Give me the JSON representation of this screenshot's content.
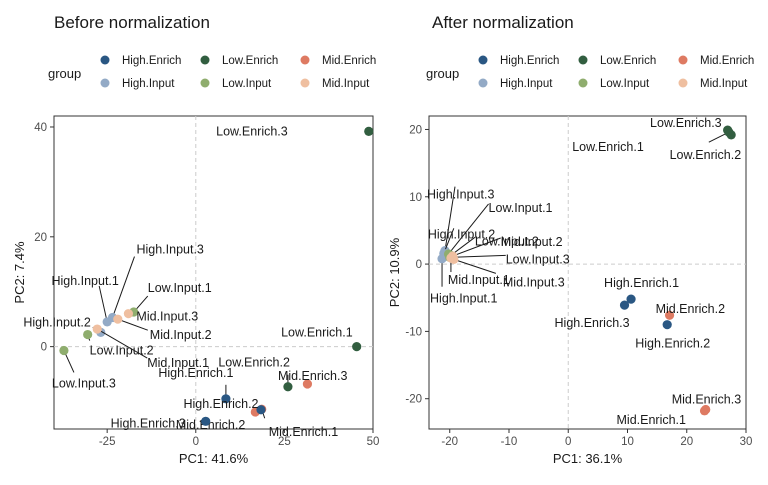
{
  "legend": {
    "title": "group",
    "entries": [
      {
        "name": "High.Enrich",
        "color": "#2a5783"
      },
      {
        "name": "Low.Enrich",
        "color": "#325e40"
      },
      {
        "name": "Mid.Enrich",
        "color": "#de7a62"
      },
      {
        "name": "High.Input",
        "color": "#93aac6"
      },
      {
        "name": "Low.Input",
        "color": "#8fad6e"
      },
      {
        "name": "Mid.Input",
        "color": "#efbfa0"
      }
    ]
  },
  "chart_data": [
    {
      "type": "scatter",
      "title": "Before normalization",
      "xlabel": "PC1: 41.6%",
      "ylabel": "PC2: 7.4%",
      "xlim": [
        -40,
        50
      ],
      "ylim": [
        -15,
        42
      ],
      "xticks": [
        -25,
        0,
        25,
        50
      ],
      "yticks": [
        0,
        20,
        40
      ],
      "reference_lines": {
        "x": 0,
        "y": 0
      },
      "legend_position": "top",
      "points": [
        {
          "label": "Low.Enrich.3",
          "group": "Low.Enrich",
          "x": 48.8,
          "y": 39.2
        },
        {
          "label": "Low.Enrich.1",
          "group": "Low.Enrich",
          "x": 45.4,
          "y": 0
        },
        {
          "label": "Low.Enrich.2",
          "group": "Low.Enrich",
          "x": 26.0,
          "y": -7.3
        },
        {
          "label": "Mid.Enrich.3",
          "group": "Mid.Enrich",
          "x": 31.5,
          "y": -6.8
        },
        {
          "label": "Mid.Enrich.1",
          "group": "Mid.Enrich",
          "x": 18.6,
          "y": -11.4
        },
        {
          "label": "Mid.Enrich.2",
          "group": "Mid.Enrich",
          "x": 16.8,
          "y": -11.9
        },
        {
          "label": "High.Enrich.1",
          "group": "High.Enrich",
          "x": 8.5,
          "y": -9.5
        },
        {
          "label": "High.Enrich.2",
          "group": "High.Enrich",
          "x": 18.4,
          "y": -11.5
        },
        {
          "label": "High.Enrich.3",
          "group": "High.Enrich",
          "x": 2.8,
          "y": -13.6
        },
        {
          "label": "High.Input.3",
          "group": "High.Input",
          "x": -23.5,
          "y": 5.3
        },
        {
          "label": "High.Input.1",
          "group": "High.Input",
          "x": -25.0,
          "y": 4.5
        },
        {
          "label": "High.Input.2",
          "group": "High.Input",
          "x": -26.8,
          "y": 2.6
        },
        {
          "label": "Low.Input.1",
          "group": "Low.Input",
          "x": -17.5,
          "y": 6.3
        },
        {
          "label": "Low.Input.2",
          "group": "Low.Input",
          "x": -30.5,
          "y": 2.2
        },
        {
          "label": "Low.Input.3",
          "group": "Low.Input",
          "x": -37.2,
          "y": -0.7
        },
        {
          "label": "Mid.Input.3",
          "group": "Mid.Input",
          "x": -19.0,
          "y": 6.0
        },
        {
          "label": "Mid.Input.2",
          "group": "Mid.Input",
          "x": -22.0,
          "y": 5.0
        },
        {
          "label": "Mid.Input.1",
          "group": "Mid.Input",
          "x": -27.8,
          "y": 3.2
        }
      ]
    },
    {
      "type": "scatter",
      "title": "After normalization",
      "xlabel": "PC1: 36.1%",
      "ylabel": "PC2: 10.9%",
      "xlim": [
        -23.5,
        30
      ],
      "ylim": [
        -24.5,
        22
      ],
      "xticks": [
        -20,
        -10,
        0,
        10,
        20,
        30
      ],
      "yticks": [
        -20,
        -10,
        0,
        10,
        20
      ],
      "reference_lines": {
        "x": 0,
        "y": 0
      },
      "legend_position": "top",
      "points": [
        {
          "label": "Low.Enrich.3",
          "group": "Low.Enrich",
          "x": 26.9,
          "y": 19.9
        },
        {
          "label": "Low.Enrich.1",
          "group": "Low.Enrich",
          "x": 27.1,
          "y": 19.6
        },
        {
          "label": "Low.Enrich.2",
          "group": "Low.Enrich",
          "x": 27.5,
          "y": 19.2
        },
        {
          "label": "High.Enrich.1",
          "group": "High.Enrich",
          "x": 10.6,
          "y": -5.2
        },
        {
          "label": "High.Enrich.3",
          "group": "High.Enrich",
          "x": 9.5,
          "y": -6.1
        },
        {
          "label": "High.Enrich.2",
          "group": "High.Enrich",
          "x": 16.7,
          "y": -9.0
        },
        {
          "label": "Mid.Enrich.2",
          "group": "Mid.Enrich",
          "x": 17.1,
          "y": -7.6
        },
        {
          "label": "Mid.Enrich.3",
          "group": "Mid.Enrich",
          "x": 23.2,
          "y": -21.6
        },
        {
          "label": "Mid.Enrich.1",
          "group": "Mid.Enrich",
          "x": 23.0,
          "y": -21.8
        },
        {
          "label": "High.Input.3",
          "group": "High.Input",
          "x": -20.8,
          "y": 2.0
        },
        {
          "label": "High.Input.2",
          "group": "High.Input",
          "x": -21.0,
          "y": 1.6
        },
        {
          "label": "High.Input.1",
          "group": "High.Input",
          "x": -21.3,
          "y": 0.8
        },
        {
          "label": "Low.Input.1",
          "group": "Low.Input",
          "x": -20.2,
          "y": 1.5
        },
        {
          "label": "Low.Input.2",
          "group": "Low.Input",
          "x": -19.8,
          "y": 1.3
        },
        {
          "label": "Low.Input.3",
          "group": "Low.Input",
          "x": -20.0,
          "y": 1.0
        },
        {
          "label": "Mid.Input.2",
          "group": "Mid.Input",
          "x": -19.5,
          "y": 1.2
        },
        {
          "label": "Mid.Input.1",
          "group": "Mid.Input",
          "x": -19.8,
          "y": 0.9
        },
        {
          "label": "Mid.Input.3",
          "group": "Mid.Input",
          "x": -19.3,
          "y": 0.7
        }
      ]
    }
  ]
}
